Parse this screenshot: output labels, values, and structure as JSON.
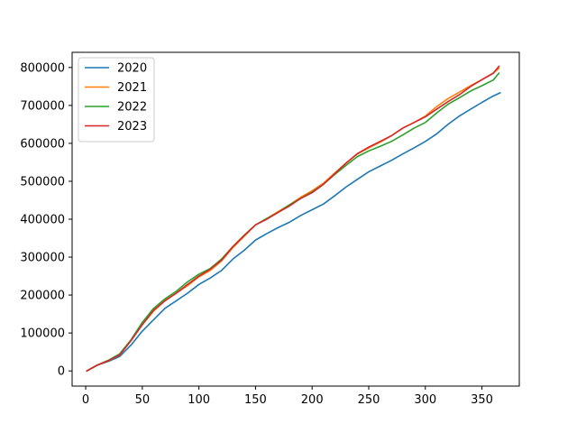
{
  "chart_data": {
    "type": "line",
    "title": "",
    "xlabel": "",
    "ylabel": "",
    "xlim": [
      -12,
      383
    ],
    "ylim": [
      -40000,
      840000
    ],
    "xticks": [
      0,
      50,
      100,
      150,
      200,
      250,
      300,
      350
    ],
    "yticks": [
      0,
      100000,
      200000,
      300000,
      400000,
      500000,
      600000,
      700000,
      800000
    ],
    "grid": false,
    "legend": "upper-left",
    "series": [
      {
        "name": "2020",
        "color": "#1f77b4",
        "x": [
          1,
          10,
          20,
          30,
          40,
          50,
          60,
          70,
          80,
          90,
          100,
          110,
          120,
          130,
          140,
          150,
          160,
          170,
          180,
          190,
          200,
          210,
          220,
          230,
          240,
          250,
          260,
          270,
          280,
          290,
          300,
          310,
          320,
          330,
          340,
          350,
          360,
          366
        ],
        "y": [
          0,
          15000,
          25000,
          38000,
          68000,
          105000,
          135000,
          165000,
          185000,
          205000,
          228000,
          245000,
          265000,
          295000,
          318000,
          345000,
          362000,
          378000,
          392000,
          410000,
          425000,
          440000,
          462000,
          485000,
          505000,
          525000,
          540000,
          555000,
          572000,
          588000,
          605000,
          625000,
          650000,
          672000,
          690000,
          708000,
          725000,
          733000
        ]
      },
      {
        "name": "2021",
        "color": "#ff7f0e",
        "x": [
          1,
          10,
          20,
          30,
          40,
          50,
          60,
          70,
          80,
          90,
          100,
          110,
          120,
          130,
          140,
          150,
          160,
          170,
          180,
          190,
          200,
          210,
          220,
          230,
          240,
          250,
          260,
          270,
          280,
          290,
          300,
          310,
          320,
          330,
          340,
          350,
          360,
          365
        ],
        "y": [
          0,
          15000,
          27000,
          42000,
          80000,
          122000,
          158000,
          185000,
          205000,
          225000,
          248000,
          265000,
          290000,
          325000,
          355000,
          385000,
          402000,
          420000,
          438000,
          458000,
          475000,
          495000,
          522000,
          548000,
          572000,
          588000,
          603000,
          620000,
          640000,
          655000,
          672000,
          697000,
          718000,
          735000,
          752000,
          768000,
          785000,
          798000
        ]
      },
      {
        "name": "2022",
        "color": "#2ca02c",
        "x": [
          1,
          10,
          20,
          30,
          40,
          50,
          60,
          70,
          80,
          90,
          100,
          110,
          120,
          130,
          140,
          150,
          160,
          170,
          180,
          190,
          200,
          210,
          220,
          230,
          240,
          250,
          260,
          270,
          280,
          290,
          300,
          310,
          320,
          330,
          340,
          350,
          360,
          365
        ],
        "y": [
          0,
          15000,
          28000,
          45000,
          82000,
          128000,
          165000,
          190000,
          210000,
          235000,
          255000,
          270000,
          295000,
          328000,
          358000,
          385000,
          402000,
          418000,
          438000,
          455000,
          472000,
          492000,
          518000,
          542000,
          565000,
          580000,
          592000,
          605000,
          622000,
          640000,
          655000,
          680000,
          703000,
          720000,
          738000,
          752000,
          767000,
          785000
        ]
      },
      {
        "name": "2023",
        "color": "#d62728",
        "x": [
          1,
          10,
          20,
          30,
          40,
          50,
          60,
          70,
          80,
          90,
          100,
          110,
          120,
          130,
          140,
          150,
          160,
          170,
          180,
          190,
          200,
          210,
          220,
          230,
          240,
          250,
          260,
          270,
          280,
          290,
          300,
          310,
          320,
          330,
          340,
          350,
          360,
          365
        ],
        "y": [
          0,
          15000,
          27000,
          42000,
          80000,
          122000,
          160000,
          185000,
          205000,
          228000,
          250000,
          268000,
          292000,
          328000,
          357000,
          385000,
          400000,
          418000,
          435000,
          455000,
          470000,
          492000,
          520000,
          548000,
          573000,
          590000,
          605000,
          620000,
          640000,
          655000,
          670000,
          690000,
          710000,
          728000,
          750000,
          768000,
          785000,
          803000
        ]
      }
    ]
  }
}
